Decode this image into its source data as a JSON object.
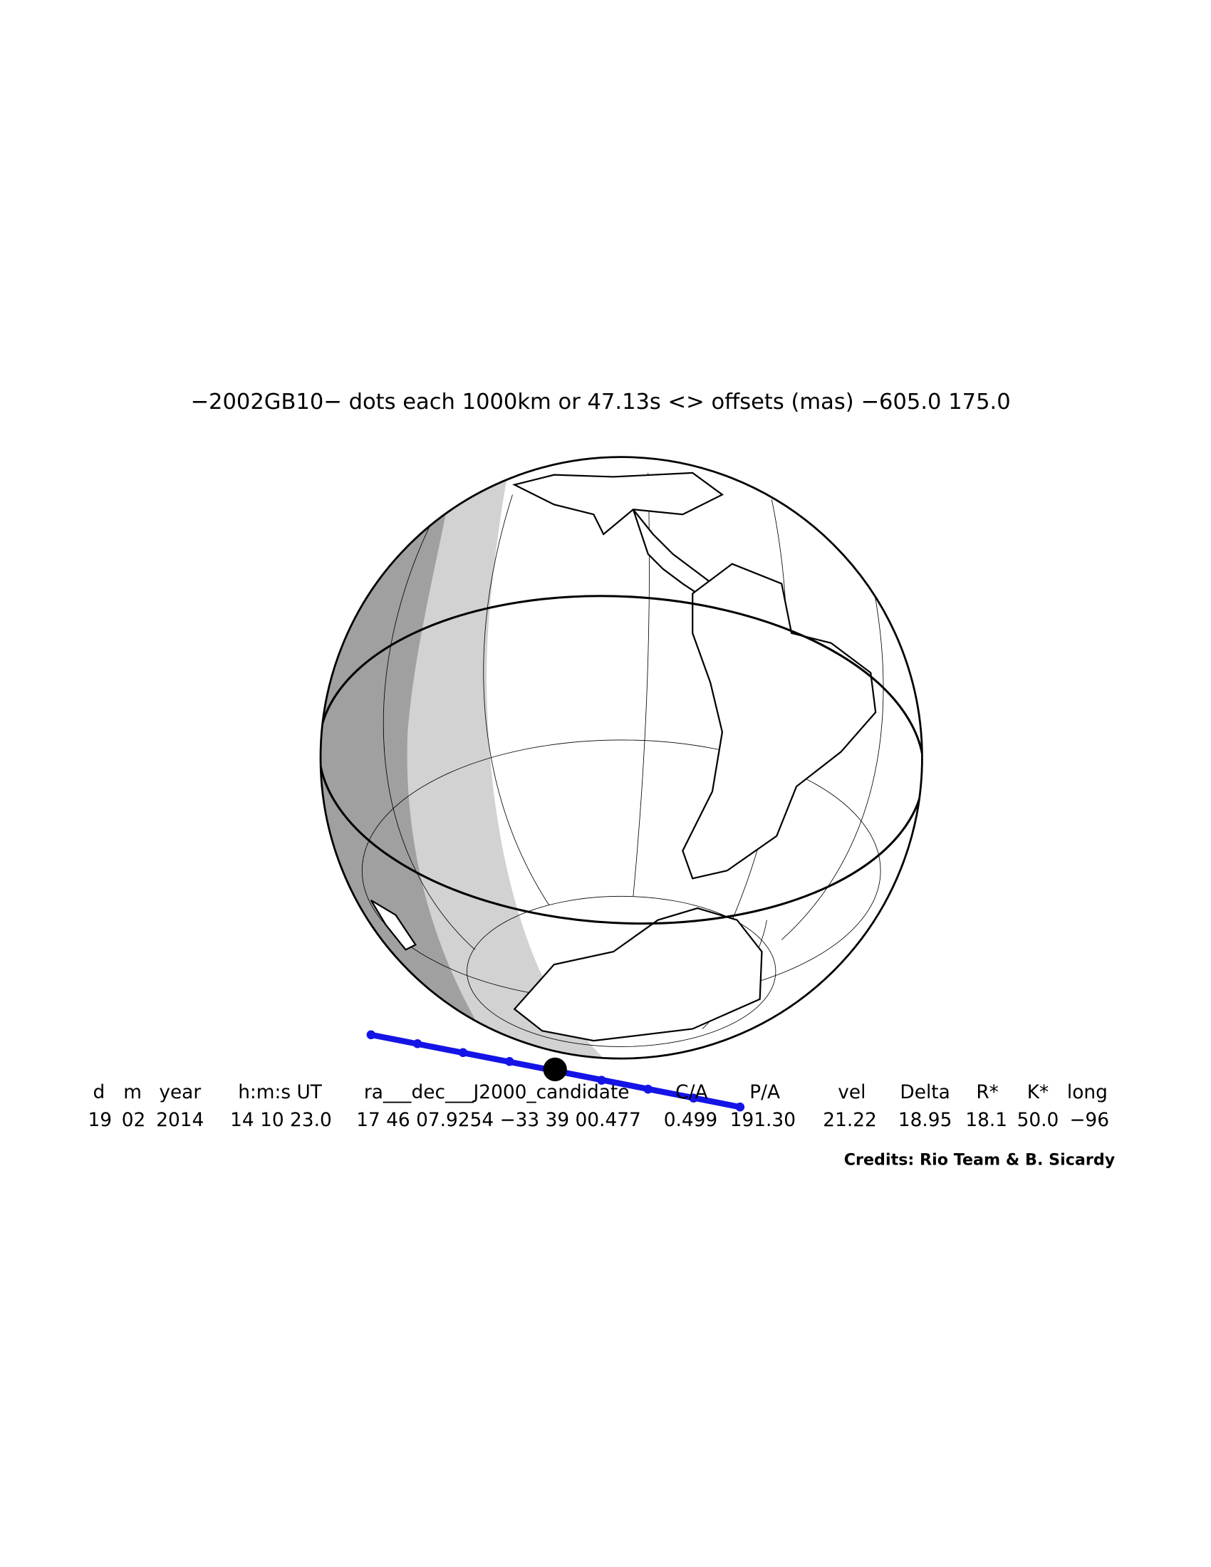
{
  "title": "−2002GB10− dots each 1000km or 47.13s <> offsets (mas) −605.0   175.0",
  "table": {
    "headers": [
      "d",
      "m",
      "year",
      "h:m:s UT",
      "ra___dec___J2000_candidate",
      "C/A",
      "P/A",
      "vel",
      "Delta",
      "R*",
      "K*",
      "long"
    ],
    "rows": [
      [
        "19",
        "02",
        "2014",
        "14 10 23.0",
        "17 46 07.9254 −33 39 00.477",
        "0.499",
        "191.30",
        "21.22",
        "18.95",
        "18.1",
        "50.0",
        "−96"
      ]
    ]
  },
  "credits": "Credits: Rio Team & B. Sicardy"
}
